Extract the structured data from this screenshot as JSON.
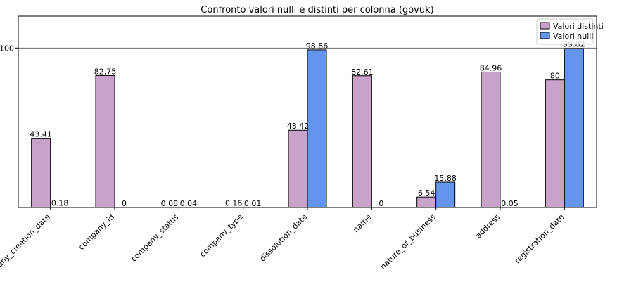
{
  "chart_data": {
    "type": "bar",
    "title": "Confronto valori nulli e distinti per colonna (govuk)",
    "xlabel": "",
    "ylabel": "",
    "categories": [
      "company_creation_date",
      "company_id",
      "company_status",
      "company_type",
      "dissolution_date",
      "name",
      "nature_of_business",
      "address",
      "registration_date"
    ],
    "series": [
      {
        "name": "Valori distinti",
        "color": "#c8a2c8",
        "values": [
          43.41,
          82.75,
          0.08,
          0.16,
          48.42,
          82.61,
          6.54,
          84.96,
          80
        ],
        "labels": [
          "43.41",
          "82.75",
          "0.08",
          "0.16",
          "48.42",
          "82.61",
          "6.54",
          "84.96",
          "80"
        ]
      },
      {
        "name": "Valori nulli",
        "color": "#6495ed",
        "values": [
          0.18,
          0,
          0.04,
          0.01,
          98.86,
          0,
          15.88,
          0.05,
          99.82
        ],
        "labels": [
          "0.18",
          "0",
          "0.04",
          "0.01",
          "98.86",
          "0",
          "15.88",
          "0.05",
          "99.82"
        ]
      }
    ],
    "yticks": [
      100
    ],
    "ylim": [
      0,
      120
    ],
    "hline": 100,
    "legend_position": "top-right",
    "grid": false
  }
}
